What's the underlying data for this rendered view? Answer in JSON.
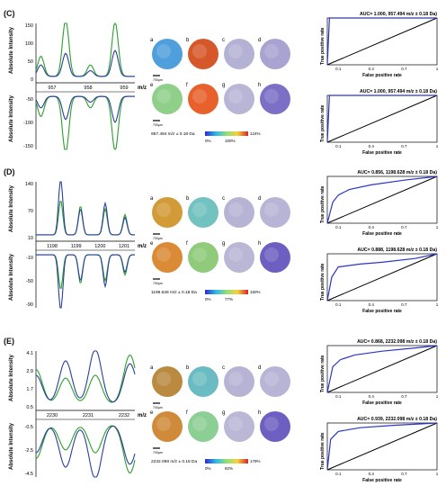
{
  "figure": {
    "panels": [
      {
        "label": "(C)",
        "spectrum": {
          "ylabel": "Absolute Intensity",
          "xlabel": "m/z",
          "top_ticks": [
            "150",
            "100",
            "50",
            "0"
          ],
          "bottom_ticks": [
            "-50",
            "-100",
            "-150"
          ],
          "x_ticks": [
            "957",
            "958",
            "959"
          ]
        },
        "images": {
          "row1": [
            "a",
            "b",
            "c",
            "d"
          ],
          "row2": [
            "e",
            "f",
            "g",
            "h"
          ],
          "scale_label": "700μm",
          "mz_caption": "957.494 m/z ± 0.18 Da",
          "colorbar_min": "0%",
          "colorbar_mid": "100%",
          "colorbar_max": "124%"
        },
        "roc": [
          {
            "title": "AUC= 1.000, 957.494 m/z ± 0.18 Da)",
            "ylabel": "True positive rate",
            "xlabel": "False  positive rate",
            "x_ticks": [
              "0.1",
              "0.4",
              "0.7",
              "1"
            ]
          },
          {
            "title": "AUC= 1.000, 957.494 m/z ± 0.18 Da)",
            "ylabel": "True positive rate",
            "xlabel": "False  positive rate",
            "x_ticks": [
              "0.1",
              "0.4",
              "0.7",
              "1"
            ]
          }
        ]
      },
      {
        "label": "(D)",
        "spectrum": {
          "ylabel": "Absolute Intensity",
          "xlabel": "m/z",
          "top_ticks": [
            "140",
            "70",
            "10"
          ],
          "bottom_ticks": [
            "-10",
            "-50",
            "-90"
          ],
          "x_ticks": [
            "1198",
            "1199",
            "1200",
            "1201"
          ]
        },
        "images": {
          "row1": [
            "a",
            "b",
            "c",
            "d"
          ],
          "row2": [
            "e",
            "f",
            "g",
            "h"
          ],
          "scale_label": "700μm",
          "mz_caption": "1198.628 m/z ± 0.18 Da",
          "colorbar_min": "0%",
          "colorbar_mid": "77%",
          "colorbar_max": "150%"
        },
        "roc": [
          {
            "title": "AUC= 0.856, 1198.628 m/z ± 0.18 Da)",
            "ylabel": "True positive rate",
            "xlabel": "False  positive rate",
            "x_ticks": [
              "0.1",
              "0.4",
              "0.7",
              "1"
            ]
          },
          {
            "title": "AUC= 0.888, 1198.628 m/z ± 0.18 Da)",
            "ylabel": "True positive rate",
            "xlabel": "False  positive rate",
            "x_ticks": [
              "0.1",
              "0.4",
              "0.7",
              "1"
            ]
          }
        ]
      },
      {
        "label": "(E)",
        "spectrum": {
          "ylabel": "Absolute Intensity",
          "xlabel": "m/z",
          "top_ticks": [
            "4.1",
            "2.9",
            "1.7",
            "0.5"
          ],
          "bottom_ticks": [
            "-0.5",
            "-2.5",
            "-4.5"
          ],
          "x_ticks": [
            "2230",
            "2231",
            "2232"
          ]
        },
        "images": {
          "row1": [
            "a",
            "b",
            "c",
            "d"
          ],
          "row2": [
            "e",
            "f",
            "g",
            "h"
          ],
          "scale_label": "700μm",
          "mz_caption": "2232.098 m/z ± 0.18 Da",
          "colorbar_min": "0%",
          "colorbar_mid": "82%",
          "colorbar_max": "179%"
        },
        "roc": [
          {
            "title": "AUC= 0.868, 2232.098 m/z ± 0.18 Da)",
            "ylabel": "True positive rate",
            "xlabel": "False  positive rate",
            "x_ticks": [
              "0.1",
              "0.4",
              "0.7",
              "1"
            ]
          },
          {
            "title": "AUC= 0.939, 2232.098 m/z ± 0.18 Da)",
            "ylabel": "True positive rate",
            "xlabel": "False  positive rate",
            "x_ticks": [
              "0.1",
              "0.4",
              "0.7",
              "1"
            ]
          }
        ]
      }
    ]
  },
  "colors": {
    "series_green": "#2ca02c",
    "series_blue": "#2b3f9e",
    "roc_blue": "#2a36c9",
    "diagonal": "#000000"
  }
}
